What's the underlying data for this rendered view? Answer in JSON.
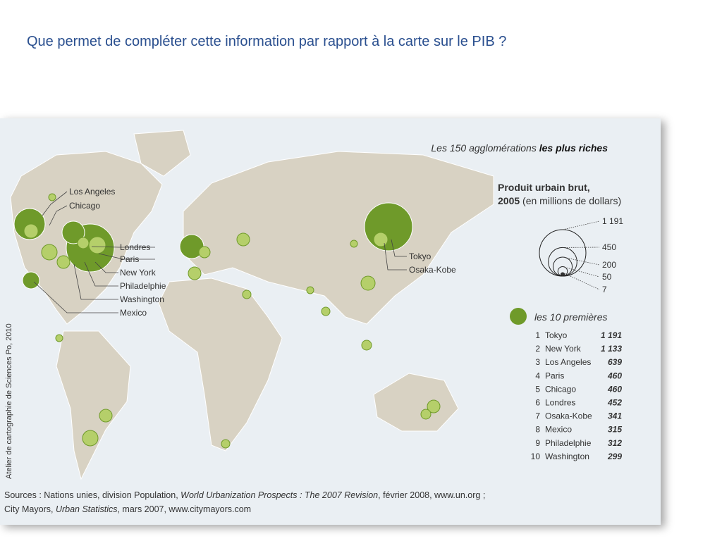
{
  "slide": {
    "title": "Que permet de compléter cette information par rapport à la carte sur le PIB ?"
  },
  "map": {
    "title": [
      "Les 150 agglomérations ",
      "les plus riches"
    ],
    "labels": [
      "Los Angeles",
      "Chicago",
      "Londres",
      "Paris",
      "New York",
      "Philadelphie",
      "Washington",
      "Mexico",
      "Tokyo",
      "Osaka-Kobe"
    ],
    "credit": "Atelier de cartographie de Sciences Po, 2010"
  },
  "legend": {
    "title": [
      "Produit urbain brut,",
      "2005",
      " (en millions de dollars)"
    ],
    "scale": [
      {
        "value": 1191,
        "label": "1 191"
      },
      {
        "value": 450,
        "label": "450"
      },
      {
        "value": 200,
        "label": "200"
      },
      {
        "value": 50,
        "label": "50"
      },
      {
        "value": 7,
        "label": "7"
      }
    ],
    "top10_title": "les 10 premières",
    "top10": [
      [
        "1",
        "Tokyo",
        "1 191"
      ],
      [
        "2",
        "New York",
        "1 133"
      ],
      [
        "3",
        "Los Angeles",
        "639"
      ],
      [
        "4",
        "Paris",
        "460"
      ],
      [
        "5",
        "Chicago",
        "460"
      ],
      [
        "6",
        "Londres",
        "452"
      ],
      [
        "7",
        "Osaka-Kobe",
        "341"
      ],
      [
        "8",
        "Mexico",
        "315"
      ],
      [
        "9",
        "Philadelphie",
        "312"
      ],
      [
        "10",
        "Washington",
        "299"
      ]
    ]
  },
  "sources": [
    [
      "Sources : Nations unies, division Population, ",
      "World Urbanization Prospects : The 2007 Revision",
      ", février 2008, www.un.org ;"
    ],
    [
      "City Mayors, ",
      "Urban Statistics",
      ", mars 2007, www.citymayors.com"
    ]
  ]
}
